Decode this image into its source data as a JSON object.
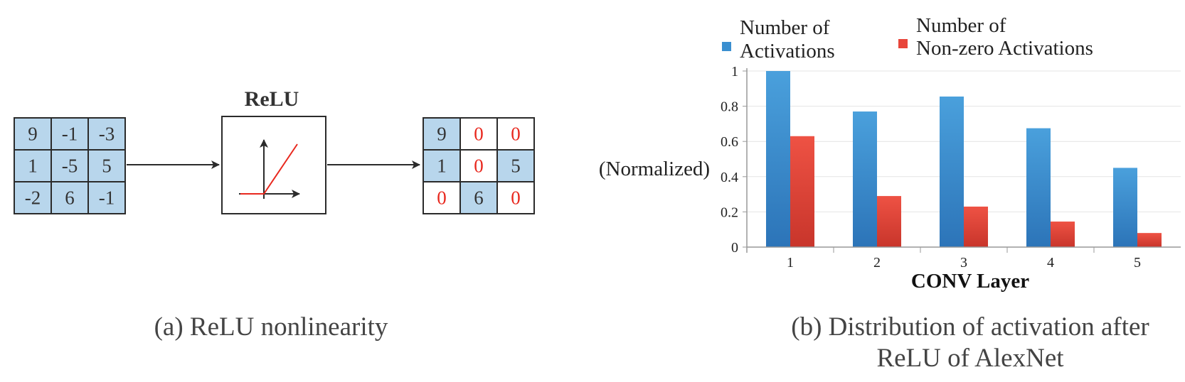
{
  "relu_diagram": {
    "title": "ReLU",
    "input_matrix": [
      [
        "9",
        "-1",
        "-3"
      ],
      [
        "1",
        "-5",
        "5"
      ],
      [
        "-2",
        "6",
        "-1"
      ]
    ],
    "output_matrix": [
      [
        "9",
        "0",
        "0"
      ],
      [
        "1",
        "0",
        "5"
      ],
      [
        "0",
        "6",
        "0"
      ]
    ],
    "zeroed_cells": [
      [
        0,
        1
      ],
      [
        0,
        2
      ],
      [
        1,
        1
      ],
      [
        2,
        0
      ],
      [
        2,
        2
      ]
    ],
    "caption": "(a) ReLU nonlinearity",
    "colors": {
      "cell_fill": "#b8d6ec",
      "zero_text": "#e8281e",
      "relu_line": "#e8281e"
    }
  },
  "chart_data": {
    "type": "bar",
    "categories": [
      "1",
      "2",
      "3",
      "4",
      "5"
    ],
    "series": [
      {
        "name_lines": [
          "Number of",
          "Activations"
        ],
        "values": [
          1.0,
          0.77,
          0.855,
          0.675,
          0.45
        ],
        "color": "#3a8fd0"
      },
      {
        "name_lines": [
          "Number of",
          "Non-zero Activations"
        ],
        "values": [
          0.63,
          0.29,
          0.23,
          0.145,
          0.08
        ],
        "color": "#e8453a"
      }
    ],
    "xlabel": "CONV Layer",
    "ylabel": "(Normalized)",
    "ylim": [
      0,
      1
    ],
    "yticks": [
      "0",
      "0.2",
      "0.4",
      "0.6",
      "0.8",
      "1"
    ],
    "grid": true,
    "legend_position": "top"
  },
  "chart_caption_lines": [
    "(b) Distribution of activation after",
    "ReLU of AlexNet"
  ]
}
